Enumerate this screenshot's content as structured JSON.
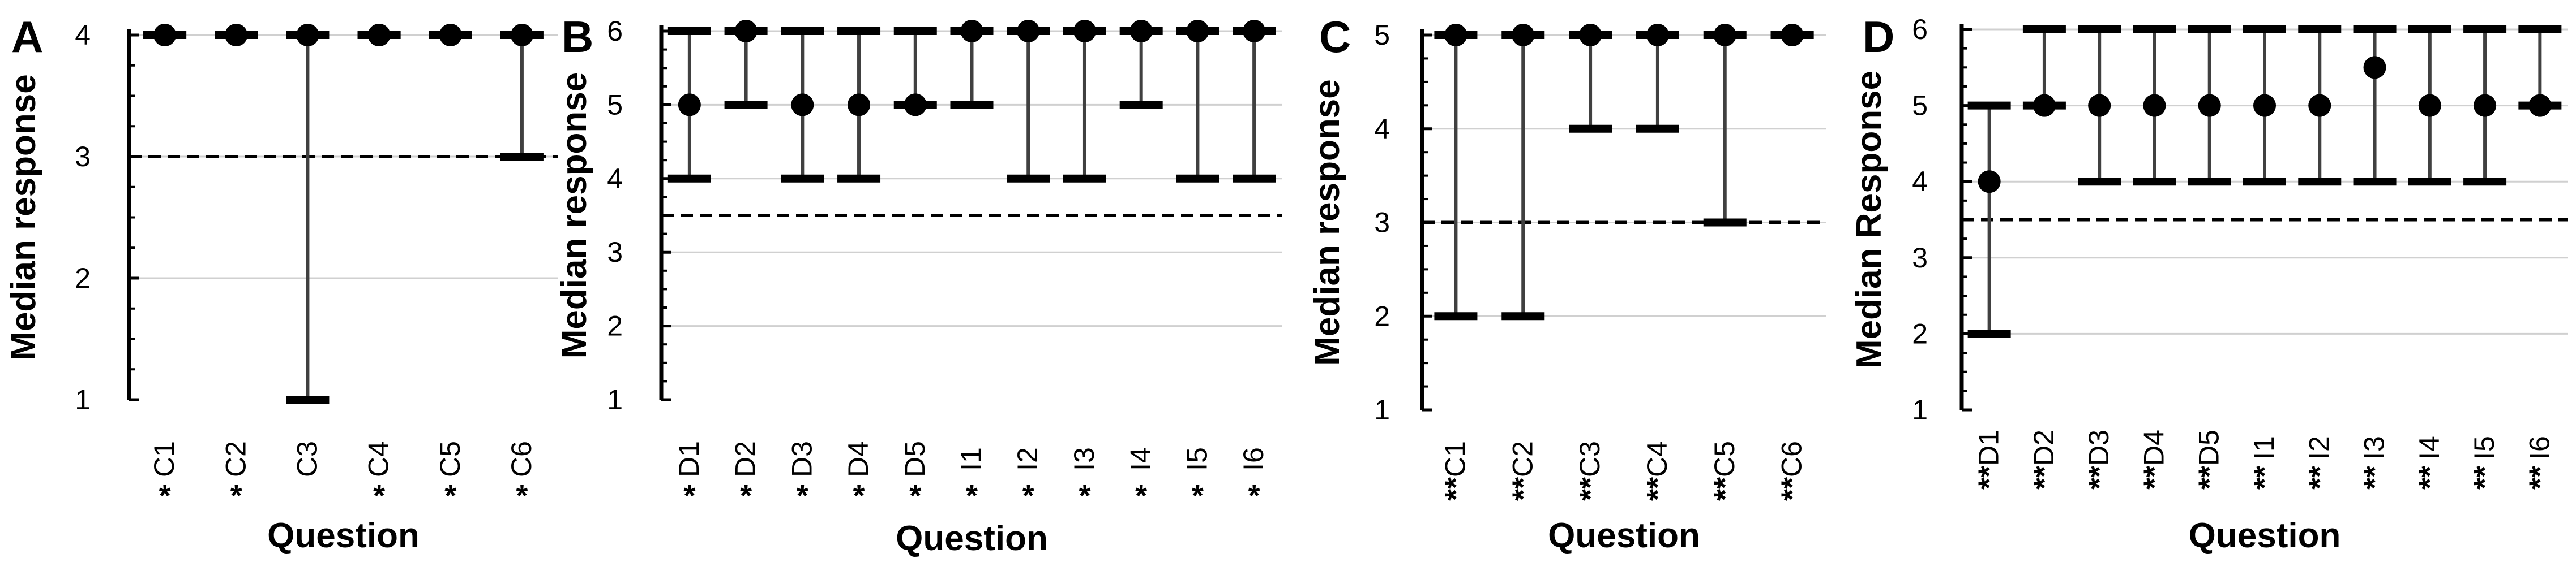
{
  "chart_data": [
    {
      "type": "scatter",
      "panel": "A",
      "ylabel": "Median response",
      "xlabel": "Question",
      "ylim": [
        1,
        4
      ],
      "yticks": [
        "1",
        "2",
        "3",
        "4"
      ],
      "threshold": 3,
      "categories": [
        "C1",
        "C2",
        "C3",
        "C4",
        "C5",
        "C6"
      ],
      "significance": [
        "*",
        "*",
        "",
        "*",
        "*",
        "*"
      ],
      "median": [
        4,
        4,
        4,
        4,
        4,
        4
      ],
      "low": [
        4,
        4,
        1,
        4,
        4,
        3
      ],
      "high": [
        4,
        4,
        4,
        4,
        4,
        4
      ]
    },
    {
      "type": "scatter",
      "panel": "B",
      "ylabel": "Median response",
      "xlabel": "Question",
      "ylim": [
        1,
        6
      ],
      "yticks": [
        "1",
        "2",
        "3",
        "4",
        "5",
        "6"
      ],
      "threshold": 3.5,
      "categories": [
        "D1",
        "D2",
        "D3",
        "D4",
        "D5",
        "I1",
        "I2",
        "I3",
        "I4",
        "I5",
        "I6"
      ],
      "significance": [
        "*",
        "*",
        "*",
        "*",
        "*",
        "*",
        "*",
        "*",
        "*",
        "*",
        "*"
      ],
      "median": [
        5,
        6,
        5,
        5,
        5,
        6,
        6,
        6,
        6,
        6,
        6
      ],
      "low": [
        4,
        5,
        4,
        4,
        5,
        5,
        4,
        4,
        5,
        4,
        4
      ],
      "high": [
        6,
        6,
        6,
        6,
        6,
        6,
        6,
        6,
        6,
        6,
        6
      ]
    },
    {
      "type": "scatter",
      "panel": "C",
      "ylabel": "Median response",
      "xlabel": "Question",
      "ylim": [
        1,
        5
      ],
      "yticks": [
        "1",
        "2",
        "3",
        "4",
        "5"
      ],
      "threshold": 3,
      "categories": [
        "C1",
        "C2",
        "C3",
        "C4",
        "C5",
        "C6"
      ],
      "significance": [
        "**",
        "**",
        "**",
        "**",
        "**",
        "**"
      ],
      "median": [
        5,
        5,
        5,
        5,
        5,
        5
      ],
      "low": [
        2,
        2,
        4,
        4,
        3,
        5
      ],
      "high": [
        5,
        5,
        5,
        5,
        5,
        5
      ]
    },
    {
      "type": "scatter",
      "panel": "D",
      "ylabel": "Median Response",
      "xlabel": "Question",
      "ylim": [
        1,
        6
      ],
      "yticks": [
        "1",
        "2",
        "3",
        "4",
        "5",
        "6"
      ],
      "threshold": 3.5,
      "categories": [
        "D1",
        "D2",
        "D3",
        "D4",
        "D5",
        "I1",
        "I2",
        "I3",
        "I4",
        "I5",
        "I6"
      ],
      "significance": [
        "**",
        "**",
        "**",
        "**",
        "**",
        "**",
        "**",
        "**",
        "**",
        "**",
        "**"
      ],
      "median": [
        4,
        5,
        5,
        5,
        5,
        5,
        5,
        5.5,
        5,
        5,
        5
      ],
      "low": [
        2,
        5,
        4,
        4,
        4,
        4,
        4,
        4,
        4,
        4,
        5
      ],
      "high": [
        5,
        6,
        6,
        6,
        6,
        6,
        6,
        6,
        6,
        6,
        6
      ]
    }
  ]
}
